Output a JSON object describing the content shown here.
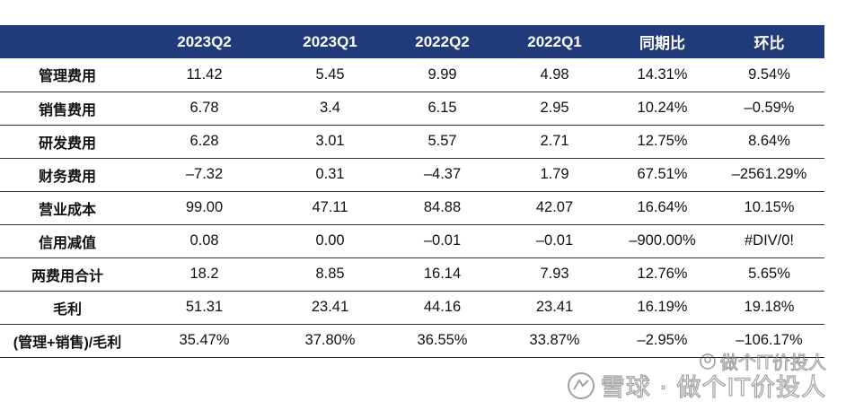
{
  "table": {
    "headers": [
      "",
      "2023Q2",
      "2023Q1",
      "2022Q2",
      "2022Q1",
      "同期比",
      "环比"
    ],
    "rows": [
      [
        "管理费用",
        "11.42",
        "5.45",
        "9.99",
        "4.98",
        "14.31%",
        "9.54%"
      ],
      [
        "销售费用",
        "6.78",
        "3.4",
        "6.15",
        "2.95",
        "10.24%",
        "–0.59%"
      ],
      [
        "研发费用",
        "6.28",
        "3.01",
        "5.57",
        "2.71",
        "12.75%",
        "8.64%"
      ],
      [
        "财务费用",
        "–7.32",
        "0.31",
        "–4.37",
        "1.79",
        "67.51%",
        "–2561.29%"
      ],
      [
        "营业成本",
        "99.00",
        "47.11",
        "84.88",
        "42.07",
        "16.64%",
        "10.15%"
      ],
      [
        "信用减值",
        "0.08",
        "0.00",
        "–0.01",
        "–0.01",
        "–900.00%",
        "#DIV/0!"
      ],
      [
        "两费用合计",
        "18.2",
        "8.85",
        "16.14",
        "7.93",
        "12.76%",
        "5.65%"
      ],
      [
        "毛利",
        "51.31",
        "23.41",
        "44.16",
        "23.41",
        "16.19%",
        "19.18%"
      ],
      [
        "(管理+销售)/毛利",
        "35.47%",
        "37.80%",
        "36.55%",
        "33.87%",
        "–2.95%",
        "–106.17%"
      ]
    ]
  },
  "colors": {
    "header_bg": "#213b7a",
    "header_text": "#ffffff",
    "row_divider": "#333333"
  },
  "watermark": {
    "top_text": "做个IT价投人",
    "bottom_text": "雪球 · 做个IT价投人",
    "icon": "xueqiu-logo-icon"
  }
}
